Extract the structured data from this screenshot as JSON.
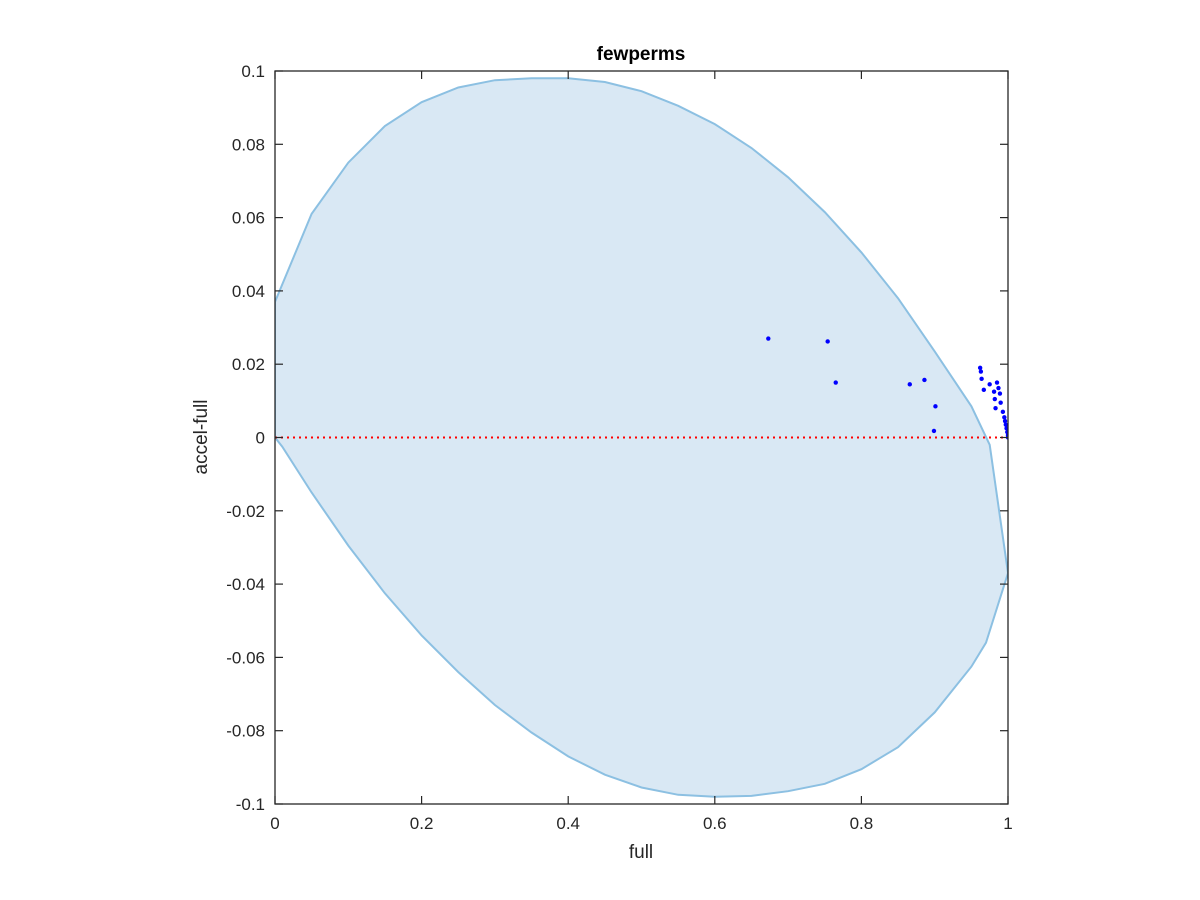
{
  "chart_data": {
    "type": "scatter",
    "title": "fewperms",
    "xlabel": "full",
    "ylabel": "accel-full",
    "xlim": [
      0,
      1
    ],
    "ylim": [
      -0.1,
      0.1
    ],
    "xticks": [
      0,
      0.2,
      0.4,
      0.6,
      0.8,
      1
    ],
    "xtick_labels": [
      "0",
      "0.2",
      "0.4",
      "0.6",
      "0.8",
      "1"
    ],
    "yticks": [
      -0.1,
      -0.08,
      -0.06,
      -0.04,
      -0.02,
      0,
      0.02,
      0.04,
      0.06,
      0.08,
      0.1
    ],
    "ytick_labels": [
      "-0.1",
      "-0.08",
      "-0.06",
      "-0.04",
      "-0.02",
      "0",
      "0.02",
      "0.04",
      "0.06",
      "0.08",
      "0.1"
    ],
    "grid": false,
    "reference_line": {
      "y": 0,
      "style": "dotted",
      "color": "#ff0000"
    },
    "region": {
      "fill": "#d9e8f4",
      "stroke": "#8cc0e2",
      "boundary": [
        [
          0,
          0.037
        ],
        [
          0.05,
          0.061
        ],
        [
          0.1,
          0.075
        ],
        [
          0.15,
          0.085
        ],
        [
          0.2,
          0.0915
        ],
        [
          0.25,
          0.0955
        ],
        [
          0.3,
          0.0975
        ],
        [
          0.35,
          0.098
        ],
        [
          0.4,
          0.098
        ],
        [
          0.45,
          0.097
        ],
        [
          0.5,
          0.0945
        ],
        [
          0.55,
          0.0905
        ],
        [
          0.6,
          0.0855
        ],
        [
          0.65,
          0.079
        ],
        [
          0.7,
          0.071
        ],
        [
          0.75,
          0.0615
        ],
        [
          0.8,
          0.0505
        ],
        [
          0.85,
          0.038
        ],
        [
          0.9,
          0.0235
        ],
        [
          0.95,
          0.0085
        ],
        [
          0.975,
          -0.002
        ],
        [
          1,
          -0.037
        ],
        [
          0.97,
          -0.056
        ],
        [
          0.95,
          -0.0625
        ],
        [
          0.9,
          -0.075
        ],
        [
          0.85,
          -0.0845
        ],
        [
          0.8,
          -0.0905
        ],
        [
          0.75,
          -0.0945
        ],
        [
          0.7,
          -0.0965
        ],
        [
          0.65,
          -0.0978
        ],
        [
          0.6,
          -0.098
        ],
        [
          0.55,
          -0.0975
        ],
        [
          0.5,
          -0.0955
        ],
        [
          0.45,
          -0.092
        ],
        [
          0.4,
          -0.087
        ],
        [
          0.35,
          -0.0805
        ],
        [
          0.3,
          -0.073
        ],
        [
          0.25,
          -0.064
        ],
        [
          0.2,
          -0.054
        ],
        [
          0.15,
          -0.0425
        ],
        [
          0.1,
          -0.0295
        ],
        [
          0.05,
          -0.015
        ],
        [
          0.01,
          -0.0025
        ],
        [
          0,
          0.0
        ]
      ]
    },
    "series": [
      {
        "color": "#0000ff",
        "points": [
          [
            0.673,
            0.027
          ],
          [
            0.754,
            0.0262
          ],
          [
            0.765,
            0.015
          ],
          [
            0.866,
            0.0145
          ],
          [
            0.886,
            0.0157
          ],
          [
            0.901,
            0.0085
          ],
          [
            0.899,
            0.0018
          ],
          [
            0.962,
            0.019
          ],
          [
            0.963,
            0.018
          ],
          [
            0.964,
            0.016
          ],
          [
            0.967,
            0.013
          ],
          [
            0.975,
            0.0145
          ],
          [
            0.981,
            0.0125
          ],
          [
            0.982,
            0.0105
          ],
          [
            0.983,
            0.008
          ],
          [
            0.985,
            0.015
          ],
          [
            0.987,
            0.0135
          ],
          [
            0.989,
            0.012
          ],
          [
            0.99,
            0.0095
          ],
          [
            0.993,
            0.007
          ],
          [
            0.995,
            0.0055
          ],
          [
            0.996,
            0.0045
          ],
          [
            0.997,
            0.0035
          ],
          [
            0.998,
            0.0025
          ],
          [
            0.999,
            0.0015
          ],
          [
            1.0,
            0.001
          ],
          [
            1.0,
            0.0005
          ],
          [
            1.0,
            0.0
          ]
        ]
      }
    ]
  }
}
